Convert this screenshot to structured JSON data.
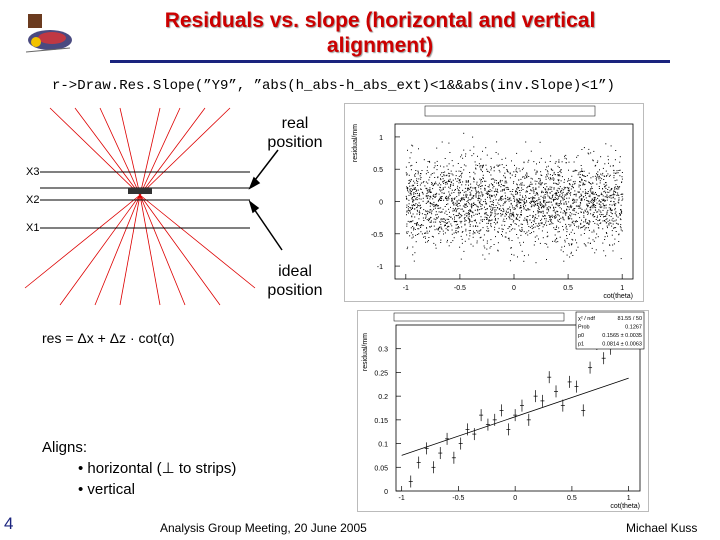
{
  "title": "Residuals vs. slope (horizontal and vertical alignment)",
  "command": "r->Draw.Res.Slope(”Y9”, ”abs(h_abs-h_abs_ext)<1&&abs(inv.Slope)<1”)",
  "diagram": {
    "layers": [
      "X3",
      "X2",
      "X1"
    ],
    "real_label": "real position",
    "ideal_label": "ideal position"
  },
  "formula": "res = Δx + Δz · cot(α)",
  "aligns": {
    "heading": "Aligns:",
    "items": [
      "horizontal (⊥ to strips)",
      "vertical"
    ]
  },
  "footer": {
    "page": "4",
    "meeting": "Analysis Group Meeting, 20 June 2005",
    "author": "Michael Kuss"
  },
  "chart_data": [
    {
      "type": "scatter",
      "ylabel": "residual/mm",
      "xlabel": "cot(theta)",
      "xlim": [
        -1.1,
        1.1
      ],
      "ylim": [
        -1.2,
        1.2
      ],
      "xticks": [
        "-1",
        "-0.5",
        "0",
        "0.5",
        "1"
      ],
      "yticks": [
        "1",
        "0.5",
        "0",
        "-0.5",
        "-1"
      ],
      "grid": false
    },
    {
      "type": "scatter",
      "ylabel": "residual/mm",
      "xlabel": "cot(theta)",
      "xlim": [
        -1.05,
        1.1
      ],
      "ylim": [
        0,
        0.35
      ],
      "xticks": [
        "-1",
        "-0.5",
        "0",
        "0.5",
        "1"
      ],
      "yticks": [
        "0.3",
        "0.25",
        "0.2",
        "0.15",
        "0.1",
        "0.05",
        "0"
      ],
      "stats": {
        "rows": [
          [
            "χ² / ndf",
            "81.55 / 50"
          ],
          [
            "Prob",
            "0.1267"
          ],
          [
            "p0",
            "0.1565 ± 0.0035"
          ],
          [
            "p1",
            "0.0814 ± 0.0063"
          ]
        ]
      },
      "fit": {
        "p0": 0.1565,
        "p1": 0.0814
      },
      "points": [
        [
          -0.92,
          0.02
        ],
        [
          -0.85,
          0.06
        ],
        [
          -0.78,
          0.09
        ],
        [
          -0.72,
          0.05
        ],
        [
          -0.66,
          0.08
        ],
        [
          -0.6,
          0.11
        ],
        [
          -0.54,
          0.07
        ],
        [
          -0.48,
          0.1
        ],
        [
          -0.42,
          0.13
        ],
        [
          -0.36,
          0.12
        ],
        [
          -0.3,
          0.16
        ],
        [
          -0.24,
          0.14
        ],
        [
          -0.18,
          0.15
        ],
        [
          -0.12,
          0.17
        ],
        [
          -0.06,
          0.13
        ],
        [
          0.0,
          0.16
        ],
        [
          0.06,
          0.18
        ],
        [
          0.12,
          0.15
        ],
        [
          0.18,
          0.2
        ],
        [
          0.24,
          0.19
        ],
        [
          0.3,
          0.24
        ],
        [
          0.36,
          0.21
        ],
        [
          0.42,
          0.18
        ],
        [
          0.48,
          0.23
        ],
        [
          0.54,
          0.22
        ],
        [
          0.6,
          0.17
        ],
        [
          0.66,
          0.26
        ],
        [
          0.72,
          0.31
        ],
        [
          0.78,
          0.28
        ],
        [
          0.84,
          0.3
        ],
        [
          0.9,
          0.34
        ]
      ]
    }
  ]
}
